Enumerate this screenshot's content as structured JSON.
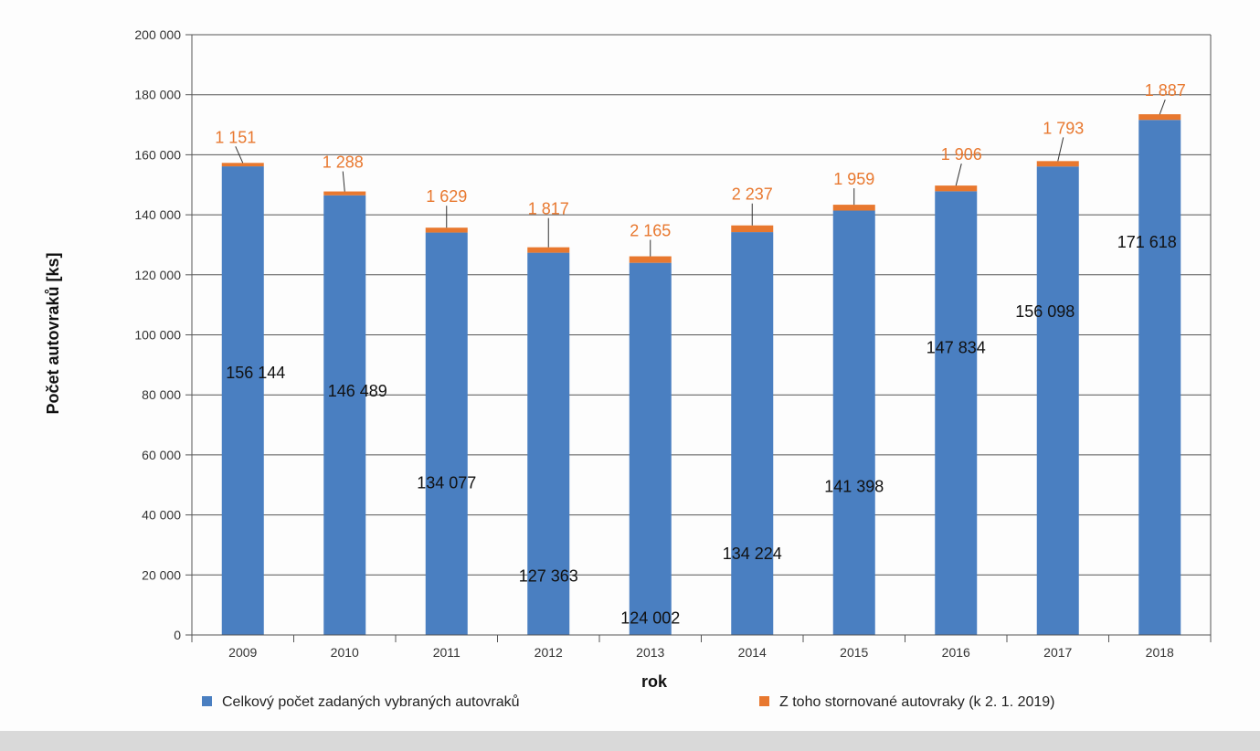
{
  "chart_data": {
    "type": "bar",
    "stacked": true,
    "categories": [
      "2009",
      "2010",
      "2011",
      "2012",
      "2013",
      "2014",
      "2015",
      "2016",
      "2017",
      "2018"
    ],
    "series": [
      {
        "name": "Celkový počet zadaných vybraných autovraků",
        "color": "#4a7fc1",
        "values": [
          156144,
          146489,
          134077,
          127363,
          124002,
          134224,
          141398,
          147834,
          156098,
          171618
        ],
        "labels": [
          "156 144",
          "146 489",
          "134 077",
          "127 363",
          "124 002",
          "134 224",
          "141 398",
          "147 834",
          "156 098",
          "171 618"
        ]
      },
      {
        "name": "Z toho stornované autovraky (k 2. 1. 2019)",
        "color": "#e8782f",
        "values": [
          1151,
          1288,
          1629,
          1817,
          2165,
          2237,
          1959,
          1906,
          1793,
          1887
        ],
        "labels": [
          "1 151",
          "1 288",
          "1 629",
          "1 817",
          "2 165",
          "2 237",
          "1 959",
          "1 906",
          "1 793",
          "1 887"
        ]
      }
    ],
    "xlabel": "rok",
    "ylabel": "Počet autovraků [ks]",
    "ylim": [
      0,
      200000
    ],
    "yticks": [
      0,
      20000,
      40000,
      60000,
      80000,
      100000,
      120000,
      140000,
      160000,
      180000,
      200000
    ],
    "ytick_labels": [
      "0",
      "20 000",
      "40 000",
      "60 000",
      "80 000",
      "100 000",
      "120 000",
      "140 000",
      "160 000",
      "180 000",
      "200 000"
    ],
    "grid": "horizontal",
    "legend_position": "bottom"
  }
}
